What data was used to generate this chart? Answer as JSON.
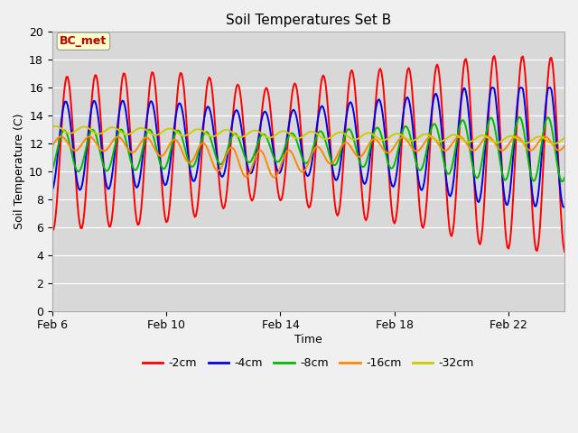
{
  "title": "Soil Temperatures Set B",
  "xlabel": "Time",
  "ylabel": "Soil Temperature (C)",
  "ylim": [
    0,
    20
  ],
  "yticks": [
    0,
    2,
    4,
    6,
    8,
    10,
    12,
    14,
    16,
    18,
    20
  ],
  "annotation": "BC_met",
  "annotation_color": "#bb0000",
  "annotation_bg": "#ffffcc",
  "annotation_border": "#999999",
  "fig_bg_color": "#f0f0f0",
  "plot_bg_color": "#d8d8d8",
  "series_colors": [
    "#ff0000",
    "#0000ee",
    "#00bb00",
    "#ff8800",
    "#cccc00"
  ],
  "series_labels": [
    "-2cm",
    "-4cm",
    "-8cm",
    "-16cm",
    "-32cm"
  ],
  "x_tick_labels": [
    "Feb 6",
    "Feb 10",
    "Feb 14",
    "Feb 18",
    "Feb 22"
  ],
  "line_width": 1.4
}
